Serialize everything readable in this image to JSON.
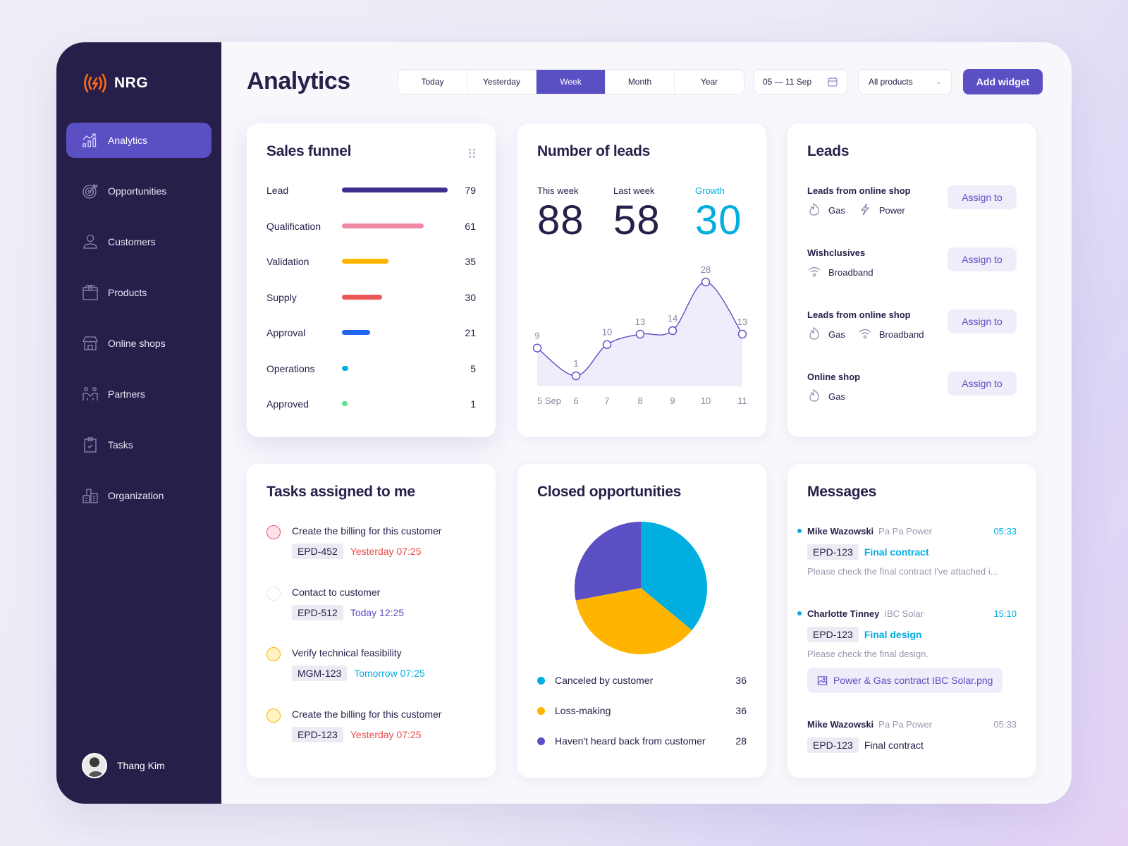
{
  "brand": {
    "name": "NRG",
    "logo_icon": "signal-bolt-icon",
    "logo_color": "#ff6a13"
  },
  "sidebar": {
    "items": [
      {
        "label": "Analytics",
        "icon": "analytics-icon",
        "active": true
      },
      {
        "label": "Opportunities",
        "icon": "target-icon"
      },
      {
        "label": "Customers",
        "icon": "user-icon"
      },
      {
        "label": "Products",
        "icon": "box-icon"
      },
      {
        "label": "Online shops",
        "icon": "store-icon"
      },
      {
        "label": "Partners",
        "icon": "partners-icon"
      },
      {
        "label": "Tasks",
        "icon": "clipboard-check-icon"
      },
      {
        "label": "Organization",
        "icon": "building-icon"
      }
    ],
    "user": {
      "name": "Thang Kim"
    },
    "bg_color": "#271f4a",
    "active_color": "#5b4fc4"
  },
  "header": {
    "title": "Analytics",
    "periods": [
      "Today",
      "Yesterday",
      "Week",
      "Month",
      "Year"
    ],
    "active_period": "Week",
    "date_range": "05 — 11 Sep",
    "product_filter": "All products",
    "add_widget_label": "Add widget"
  },
  "sales_funnel": {
    "title": "Sales funnel",
    "rows": [
      {
        "label": "Lead",
        "value": "79",
        "color": "#3f2d8f"
      },
      {
        "label": "Qualification",
        "value": "61",
        "color": "#f088a4"
      },
      {
        "label": "Validation",
        "value": "35",
        "color": "#ffb400"
      },
      {
        "label": "Supply",
        "value": "30",
        "color": "#ec5656"
      },
      {
        "label": "Approval",
        "value": "21",
        "color": "#2166f3"
      },
      {
        "label": "Operations",
        "value": "5",
        "color": "#00aedf"
      },
      {
        "label": "Approved",
        "value": "1",
        "color": "#5ee08a"
      }
    ]
  },
  "number_of_leads": {
    "title": "Number of leads",
    "this_week_label": "This week",
    "this_week": "88",
    "last_week_label": "Last week",
    "last_week": "58",
    "growth_label": "Growth",
    "growth": "30"
  },
  "leads": {
    "title": "Leads",
    "assign_label": "Assign to",
    "rows": [
      {
        "name": "Leads from online shop",
        "tags": [
          {
            "label": "Gas",
            "icon": "flame-icon"
          },
          {
            "label": "Power",
            "icon": "bolt-icon"
          }
        ]
      },
      {
        "name": "Wishclusives",
        "tags": [
          {
            "label": "Broadband",
            "icon": "wifi-icon"
          }
        ]
      },
      {
        "name": "Leads from online shop",
        "tags": [
          {
            "label": "Gas",
            "icon": "flame-icon"
          },
          {
            "label": "Broadband",
            "icon": "wifi-icon"
          }
        ]
      },
      {
        "name": "Online shop",
        "tags": [
          {
            "label": "Gas",
            "icon": "flame-icon"
          }
        ]
      }
    ]
  },
  "tasks": {
    "title": "Tasks assigned to me",
    "items": [
      {
        "title": "Create the billing for this customer",
        "code": "EPD-452",
        "when": "Yesterday 07:25",
        "when_color": "#ec4b4b",
        "status": "red"
      },
      {
        "title": "Contact to customer",
        "code": "EPD-512",
        "when": "Today 12:25",
        "when_color": "#5b4fc4",
        "status": "none"
      },
      {
        "title": "Verify technical feasibility",
        "code": "MGM-123",
        "when": "Tomorrow 07:25",
        "when_color": "#00aedf",
        "status": "yellow"
      },
      {
        "title": "Create the billing for this customer",
        "code": "EPD-123",
        "when": "Yesterday 07:25",
        "when_color": "#ec4b4b",
        "status": "yellow"
      }
    ]
  },
  "closed_opportunities": {
    "title": "Closed opportunities",
    "legend": [
      {
        "label": "Canceled by customer",
        "value": "36",
        "color": "#00aedf"
      },
      {
        "label": "Loss-making",
        "value": "36",
        "color": "#ffb400"
      },
      {
        "label": "Haven't heard back from customer",
        "value": "28",
        "color": "#5b4fc4"
      }
    ]
  },
  "messages": {
    "title": "Messages",
    "items": [
      {
        "sender": "Mike Wazowski",
        "company": "Pa Pa Power",
        "time": "05:33",
        "unread": true,
        "code": "EPD-123",
        "subject": "Final contract",
        "preview": "Please check the final contract I've attached i..."
      },
      {
        "sender": "Charlotte Tinney",
        "company": "IBC Solar",
        "time": "15:10",
        "unread": true,
        "code": "EPD-123",
        "subject": "Final design",
        "preview": "Please check the final design.",
        "attachment": "Power & Gas contract IBC Solar.png"
      },
      {
        "sender": "Mike Wazowski",
        "company": "Pa Pa Power",
        "time": "05:33",
        "unread": false,
        "code": "EPD-123",
        "subject": "Final contract"
      }
    ]
  },
  "chart_data": [
    {
      "type": "bar",
      "title": "Sales funnel",
      "orientation": "horizontal",
      "categories": [
        "Lead",
        "Qualification",
        "Validation",
        "Supply",
        "Approval",
        "Operations",
        "Approved"
      ],
      "values": [
        79,
        61,
        35,
        30,
        21,
        5,
        1
      ],
      "colors": [
        "#3f2d8f",
        "#f088a4",
        "#ffb400",
        "#ec5656",
        "#2166f3",
        "#00aedf",
        "#5ee08a"
      ]
    },
    {
      "type": "area",
      "title": "Number of leads",
      "x": [
        "5 Sep",
        "6",
        "7",
        "8",
        "9",
        "10",
        "11"
      ],
      "values": [
        9,
        1,
        10,
        13,
        14,
        28,
        13
      ],
      "xlabel": "",
      "ylabel": "",
      "grid": false,
      "line_color": "#5b4fc4",
      "fill_color": "#efedfb"
    },
    {
      "type": "pie",
      "title": "Closed opportunities",
      "categories": [
        "Canceled by customer",
        "Loss-making",
        "Haven't heard back from customer"
      ],
      "values": [
        36,
        36,
        28
      ],
      "colors": [
        "#00aedf",
        "#ffb400",
        "#5b4fc4"
      ],
      "legend_position": "bottom"
    }
  ]
}
